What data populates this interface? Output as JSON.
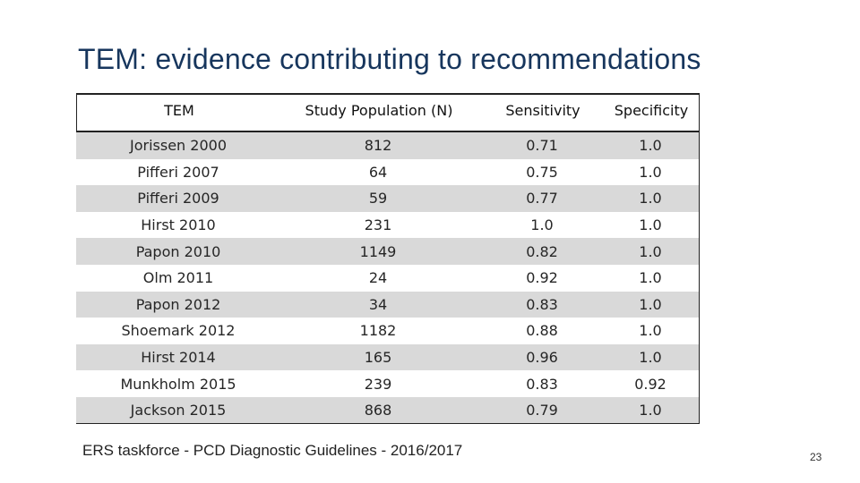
{
  "slide": {
    "title": "TEM: evidence contributing to recommendations",
    "footer": "ERS taskforce - PCD Diagnostic Guidelines - 2016/2017",
    "page_number": "23"
  },
  "table": {
    "headers": [
      "TEM",
      "Study Population (N)",
      "Sensitivity",
      "Specificity"
    ],
    "rows": [
      [
        "Jorissen 2000",
        "812",
        "0.71",
        "1.0"
      ],
      [
        "Pifferi 2007",
        "64",
        "0.75",
        "1.0"
      ],
      [
        "Pifferi 2009",
        "59",
        "0.77",
        "1.0"
      ],
      [
        "Hirst 2010",
        "231",
        "1.0",
        "1.0"
      ],
      [
        "Papon 2010",
        "1149",
        "0.82",
        "1.0"
      ],
      [
        "Olm 2011",
        "24",
        "0.92",
        "1.0"
      ],
      [
        "Papon 2012",
        "34",
        "0.83",
        "1.0"
      ],
      [
        "Shoemark 2012",
        "1182",
        "0.88",
        "1.0"
      ],
      [
        "Hirst 2014",
        "165",
        "0.96",
        "1.0"
      ],
      [
        "Munkholm 2015",
        "239",
        "0.83",
        "0.92"
      ],
      [
        "Jackson 2015",
        "868",
        "0.79",
        "1.0"
      ]
    ]
  },
  "colors": {
    "title": "#17365d",
    "row_shade": "#d9d9d9"
  }
}
